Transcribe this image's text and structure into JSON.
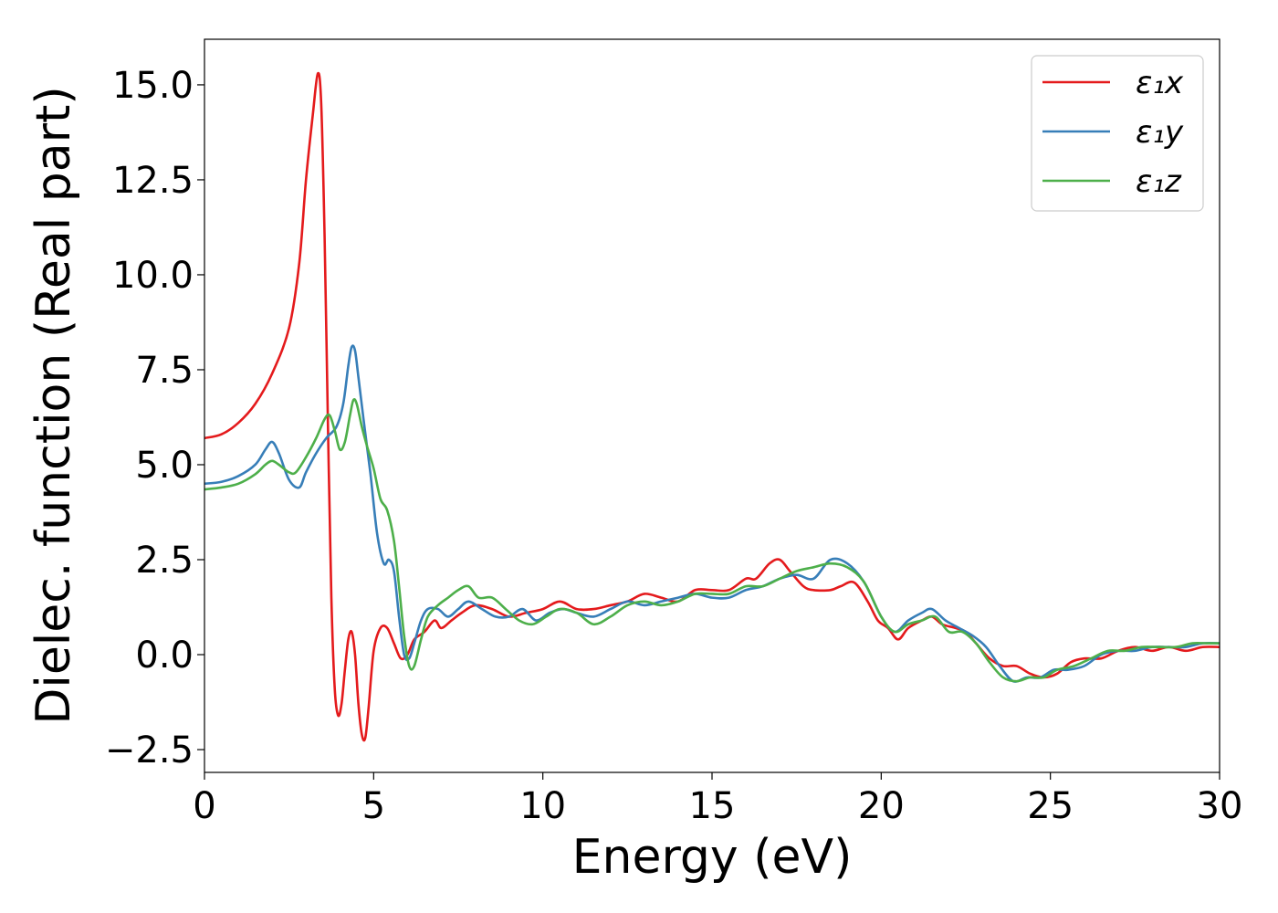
{
  "chart_data": {
    "type": "line",
    "title": "",
    "xlabel": "Energy (eV)",
    "ylabel": "Dielec. function (Real part)",
    "xlim": [
      0,
      30
    ],
    "ylim": [
      -3.1,
      16.2
    ],
    "xticks": [
      0,
      5,
      10,
      15,
      20,
      25,
      30
    ],
    "xtick_labels": [
      "0",
      "5",
      "10",
      "15",
      "20",
      "25",
      "30"
    ],
    "yticks": [
      -2.5,
      0.0,
      2.5,
      5.0,
      7.5,
      10.0,
      12.5,
      15.0
    ],
    "ytick_labels": [
      "−2.5",
      "0.0",
      "2.5",
      "5.0",
      "7.5",
      "10.0",
      "12.5",
      "15.0"
    ],
    "grid": false,
    "legend_position": "top-right",
    "series": [
      {
        "name": "ε₁x",
        "color": "#e41a1c",
        "x": [
          0,
          0.5,
          1,
          1.5,
          2,
          2.5,
          2.8,
          3.0,
          3.2,
          3.35,
          3.45,
          3.55,
          3.65,
          3.75,
          3.85,
          3.95,
          4.05,
          4.15,
          4.25,
          4.35,
          4.45,
          4.55,
          4.65,
          4.75,
          4.85,
          5.0,
          5.2,
          5.4,
          5.6,
          5.8,
          6.0,
          6.2,
          6.5,
          6.8,
          7.0,
          7.3,
          7.6,
          8.0,
          8.5,
          9.0,
          9.5,
          10.0,
          10.5,
          11.0,
          11.5,
          12.0,
          12.5,
          13.0,
          13.5,
          14.0,
          14.5,
          15.0,
          15.5,
          16.0,
          16.3,
          16.7,
          17.0,
          17.3,
          17.7,
          18.0,
          18.5,
          18.8,
          19.2,
          19.6,
          19.9,
          20.2,
          20.5,
          20.8,
          21.2,
          21.5,
          21.8,
          22.2,
          22.5,
          22.8,
          23.2,
          23.6,
          24.0,
          24.4,
          24.8,
          25.2,
          25.6,
          26.0,
          26.5,
          27.0,
          27.5,
          28.0,
          28.5,
          29.0,
          29.5,
          30.0
        ],
        "y": [
          5.7,
          5.8,
          6.1,
          6.6,
          7.4,
          8.6,
          10.3,
          12.5,
          14.2,
          15.3,
          14.5,
          11.0,
          6.0,
          1.5,
          -0.9,
          -1.6,
          -1.3,
          -0.4,
          0.4,
          0.6,
          0.0,
          -1.3,
          -2.1,
          -2.2,
          -1.4,
          0.1,
          0.7,
          0.7,
          0.3,
          -0.1,
          0.0,
          0.4,
          0.6,
          0.9,
          0.7,
          0.9,
          1.1,
          1.3,
          1.2,
          1.0,
          1.1,
          1.2,
          1.4,
          1.2,
          1.2,
          1.3,
          1.4,
          1.6,
          1.5,
          1.4,
          1.7,
          1.7,
          1.7,
          2.0,
          2.0,
          2.4,
          2.5,
          2.2,
          1.8,
          1.7,
          1.7,
          1.8,
          1.9,
          1.4,
          0.9,
          0.7,
          0.4,
          0.7,
          0.9,
          1.0,
          0.8,
          0.7,
          0.6,
          0.3,
          -0.1,
          -0.3,
          -0.3,
          -0.5,
          -0.6,
          -0.5,
          -0.2,
          -0.1,
          -0.1,
          0.1,
          0.2,
          0.1,
          0.2,
          0.1,
          0.2,
          0.2
        ]
      },
      {
        "name": "ε₁y",
        "color": "#377eb8",
        "x": [
          0,
          0.5,
          1,
          1.5,
          1.8,
          2.0,
          2.2,
          2.5,
          2.8,
          3.0,
          3.3,
          3.6,
          3.9,
          4.1,
          4.25,
          4.35,
          4.45,
          4.55,
          4.7,
          4.9,
          5.1,
          5.3,
          5.45,
          5.6,
          5.75,
          5.9,
          6.05,
          6.2,
          6.4,
          6.6,
          6.9,
          7.2,
          7.5,
          7.8,
          8.2,
          8.6,
          9.0,
          9.4,
          9.8,
          10.2,
          10.6,
          11.0,
          11.5,
          12.0,
          12.5,
          13.0,
          13.5,
          14.0,
          14.5,
          15.0,
          15.5,
          16.0,
          16.5,
          17.0,
          17.5,
          18.0,
          18.5,
          19.0,
          19.5,
          20.0,
          20.4,
          20.8,
          21.2,
          21.5,
          21.9,
          22.3,
          22.7,
          23.1,
          23.5,
          23.9,
          24.3,
          24.7,
          25.1,
          25.5,
          26.0,
          26.5,
          27.0,
          27.5,
          28.0,
          28.5,
          29.0,
          29.5,
          30.0
        ],
        "y": [
          4.5,
          4.55,
          4.7,
          5.0,
          5.4,
          5.6,
          5.3,
          4.6,
          4.4,
          4.8,
          5.3,
          5.7,
          6.0,
          6.6,
          7.6,
          8.1,
          8.0,
          7.3,
          6.2,
          4.8,
          3.2,
          2.4,
          2.5,
          2.2,
          1.0,
          0.0,
          -0.1,
          0.3,
          0.9,
          1.2,
          1.2,
          1.0,
          1.2,
          1.4,
          1.2,
          1.0,
          1.0,
          1.2,
          0.9,
          1.1,
          1.2,
          1.1,
          1.0,
          1.2,
          1.4,
          1.3,
          1.4,
          1.5,
          1.6,
          1.5,
          1.5,
          1.7,
          1.8,
          2.0,
          2.1,
          2.0,
          2.5,
          2.4,
          1.9,
          1.0,
          0.6,
          0.9,
          1.1,
          1.2,
          0.9,
          0.7,
          0.5,
          0.2,
          -0.3,
          -0.7,
          -0.6,
          -0.6,
          -0.4,
          -0.4,
          -0.3,
          0.0,
          0.1,
          0.1,
          0.2,
          0.2,
          0.2,
          0.3,
          0.3
        ]
      },
      {
        "name": "ε₁z",
        "color": "#4daf4a",
        "x": [
          0,
          0.5,
          1,
          1.5,
          1.8,
          2.0,
          2.2,
          2.5,
          2.7,
          3.0,
          3.3,
          3.55,
          3.7,
          3.85,
          4.0,
          4.15,
          4.3,
          4.4,
          4.5,
          4.65,
          4.8,
          5.0,
          5.2,
          5.4,
          5.6,
          5.75,
          5.9,
          6.05,
          6.2,
          6.4,
          6.6,
          6.9,
          7.2,
          7.5,
          7.8,
          8.1,
          8.5,
          8.9,
          9.3,
          9.7,
          10.1,
          10.5,
          11.0,
          11.5,
          12.0,
          12.5,
          13.0,
          13.5,
          14.0,
          14.5,
          15.0,
          15.5,
          16.0,
          16.5,
          17.0,
          17.5,
          18.0,
          18.5,
          19.0,
          19.5,
          20.0,
          20.4,
          20.8,
          21.2,
          21.6,
          22.0,
          22.4,
          22.8,
          23.2,
          23.6,
          24.0,
          24.4,
          24.8,
          25.2,
          25.7,
          26.2,
          26.7,
          27.2,
          27.7,
          28.2,
          28.7,
          29.2,
          29.6,
          30.0
        ],
        "y": [
          4.35,
          4.4,
          4.5,
          4.75,
          5.0,
          5.1,
          5.0,
          4.8,
          4.8,
          5.2,
          5.7,
          6.2,
          6.3,
          5.9,
          5.4,
          5.6,
          6.3,
          6.7,
          6.6,
          6.0,
          5.5,
          4.9,
          4.1,
          3.8,
          3.0,
          1.8,
          0.5,
          -0.3,
          -0.3,
          0.4,
          1.0,
          1.3,
          1.5,
          1.7,
          1.8,
          1.5,
          1.5,
          1.2,
          0.9,
          0.8,
          1.0,
          1.2,
          1.1,
          0.8,
          1.0,
          1.3,
          1.4,
          1.3,
          1.4,
          1.6,
          1.6,
          1.6,
          1.8,
          1.8,
          2.0,
          2.2,
          2.3,
          2.4,
          2.3,
          1.9,
          1.0,
          0.6,
          0.8,
          0.9,
          1.0,
          0.6,
          0.6,
          0.3,
          -0.2,
          -0.6,
          -0.7,
          -0.6,
          -0.6,
          -0.4,
          -0.3,
          -0.1,
          0.1,
          0.1,
          0.2,
          0.2,
          0.2,
          0.3,
          0.3,
          0.3
        ]
      }
    ]
  }
}
